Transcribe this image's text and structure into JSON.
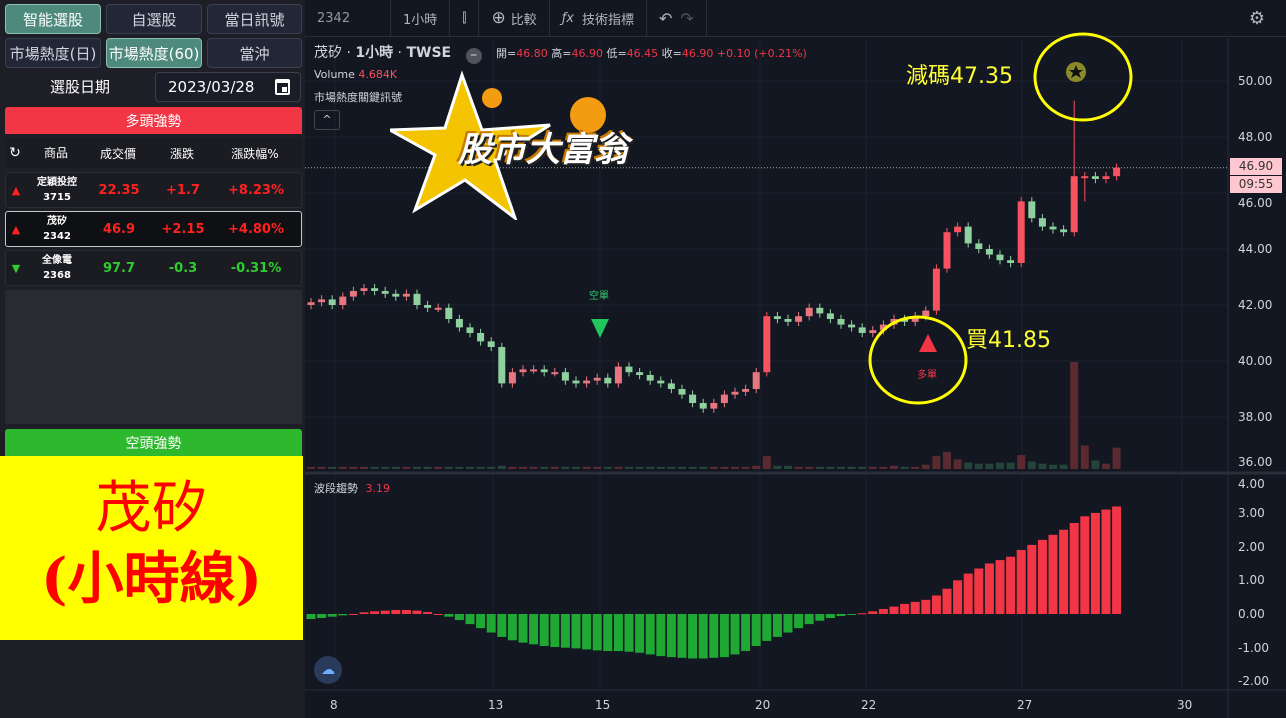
{
  "left": {
    "tabs_row1": [
      "智能選股",
      "自選股",
      "當日訊號"
    ],
    "tabs_row2": [
      "市場熱度(日)",
      "市場熱度(60)",
      "當沖"
    ],
    "date_label": "選股日期",
    "date_value": "2023/03/28",
    "bull_title": "多頭強勢",
    "bear_title": "空頭強勢",
    "columns": [
      "商品",
      "成交價",
      "漲跌",
      "漲跌幅%"
    ],
    "rows": [
      {
        "name": "定穎投控",
        "code": "3715",
        "price": "22.35",
        "change": "+1.7",
        "pct": "+8.23%",
        "dir": "up"
      },
      {
        "name": "茂矽",
        "code": "2342",
        "price": "46.9",
        "change": "+2.15",
        "pct": "+4.80%",
        "dir": "up"
      },
      {
        "name": "全像電",
        "code": "2368",
        "price": "97.7",
        "change": "-0.3",
        "pct": "-0.31%",
        "dir": "down"
      }
    ],
    "overlay_line1": "茂矽",
    "overlay_line2": "(小時線)"
  },
  "toolbar": {
    "symbol": "2342",
    "interval": "1小時",
    "compare": "比較",
    "indicators": "技術指標"
  },
  "legend": {
    "title": "茂矽",
    "interval": "1小時",
    "exchange": "TWSE",
    "o_label": "開=",
    "o": "46.80",
    "h_label": "高=",
    "h": "46.90",
    "l_label": "低=",
    "l": "46.45",
    "c_label": "收=",
    "c": "46.90",
    "chg": "+0.10 (+0.21%)",
    "volume_label": "Volume",
    "volume": "4.684K",
    "indicator": "市場熱度關鍵訊號"
  },
  "logo_text": "股市大富翁",
  "annotations": {
    "sell": "減碼47.35",
    "buy": "買41.85",
    "short": "空單",
    "long": "多單"
  },
  "price_axis": {
    "ticks": [
      "50.00",
      "48.00",
      "46.00",
      "44.00",
      "42.00",
      "40.00",
      "38.00",
      "36.00"
    ],
    "last_price": "46.90",
    "countdown": "09:55"
  },
  "osc": {
    "label": "波段趨勢",
    "value": "3.19",
    "ticks": [
      "4.00",
      "3.00",
      "2.00",
      "1.00",
      "0.00",
      "-1.00",
      "-2.00"
    ]
  },
  "time_axis": [
    "8",
    "13",
    "15",
    "20",
    "22",
    "27",
    "30"
  ],
  "colors": {
    "up": "#f7525f",
    "down": "#8fd19e",
    "accent": "#ffff00"
  },
  "chart_data": {
    "type": "candlestick",
    "closes": [
      42.1,
      42.2,
      42.0,
      42.3,
      42.5,
      42.6,
      42.5,
      42.4,
      42.3,
      42.4,
      42.0,
      41.9,
      41.9,
      41.5,
      41.2,
      41.0,
      40.7,
      40.5,
      39.2,
      39.6,
      39.7,
      39.7,
      39.6,
      39.6,
      39.3,
      39.2,
      39.3,
      39.4,
      39.2,
      39.8,
      39.6,
      39.5,
      39.3,
      39.2,
      39.0,
      38.8,
      38.5,
      38.3,
      38.5,
      38.8,
      38.9,
      39.0,
      39.6,
      41.6,
      41.5,
      41.4,
      41.6,
      41.9,
      41.7,
      41.5,
      41.3,
      41.2,
      41.0,
      41.1,
      41.3,
      41.5,
      41.4,
      41.6,
      41.8,
      43.3,
      44.6,
      44.8,
      44.2,
      44.0,
      43.8,
      43.6,
      43.5,
      45.7,
      45.1,
      44.8,
      44.7,
      44.6,
      46.6,
      46.6,
      46.5,
      46.6,
      46.9
    ],
    "volume_rel": [
      2,
      2,
      2,
      2,
      2,
      2,
      2,
      2,
      2,
      2,
      2,
      2,
      2,
      2,
      2,
      2,
      2,
      2,
      3,
      2,
      2,
      2,
      2,
      2,
      2,
      2,
      2,
      2,
      2,
      2,
      2,
      2,
      2,
      2,
      2,
      2,
      2,
      2,
      2,
      2,
      2,
      2,
      3,
      12,
      3,
      3,
      2,
      2,
      2,
      2,
      2,
      2,
      2,
      2,
      2,
      3,
      2,
      2,
      4,
      12,
      16,
      9,
      6,
      5,
      5,
      6,
      6,
      13,
      7,
      5,
      4,
      4,
      100,
      22,
      8,
      5,
      20
    ],
    "oscillator": [
      -0.15,
      -0.12,
      -0.08,
      -0.04,
      0.0,
      0.05,
      0.08,
      0.1,
      0.12,
      0.12,
      0.1,
      0.06,
      0.0,
      -0.08,
      -0.18,
      -0.3,
      -0.42,
      -0.55,
      -0.68,
      -0.78,
      -0.85,
      -0.9,
      -0.95,
      -0.98,
      -1.0,
      -1.02,
      -1.05,
      -1.08,
      -1.1,
      -1.1,
      -1.12,
      -1.15,
      -1.2,
      -1.25,
      -1.28,
      -1.3,
      -1.32,
      -1.32,
      -1.3,
      -1.28,
      -1.2,
      -1.1,
      -0.95,
      -0.8,
      -0.68,
      -0.55,
      -0.42,
      -0.3,
      -0.2,
      -0.12,
      -0.06,
      -0.02,
      0.02,
      0.08,
      0.15,
      0.22,
      0.3,
      0.36,
      0.42,
      0.55,
      0.75,
      1.0,
      1.2,
      1.35,
      1.5,
      1.6,
      1.7,
      1.9,
      2.05,
      2.2,
      2.35,
      2.5,
      2.7,
      2.9,
      3.0,
      3.1,
      3.19
    ],
    "price_ylim": [
      36,
      51
    ],
    "osc_ylim": [
      -2.2,
      4.0
    ]
  }
}
